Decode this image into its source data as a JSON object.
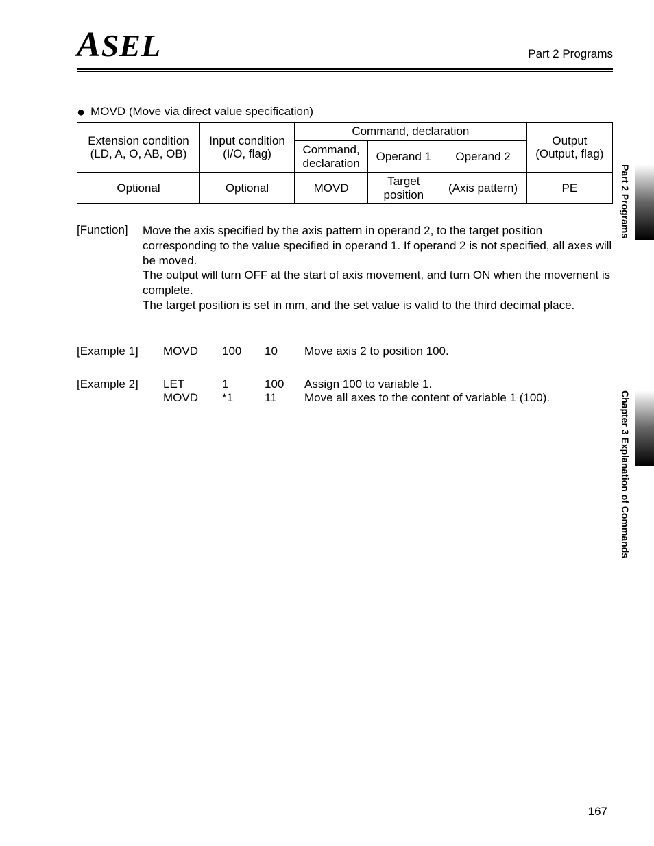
{
  "header": {
    "logo_text_a": "A",
    "logo_text_rest": "SEL",
    "right": "Part 2  Programs"
  },
  "title": {
    "bullet": "●",
    "text": "MOVD (Move via direct value specification)"
  },
  "table": {
    "h_ext1": "Extension condition",
    "h_ext2": "(LD, A, O, AB, OB)",
    "h_in1": "Input condition",
    "h_in2": "(I/O, flag)",
    "h_cmd_span": "Command, declaration",
    "h_cmd1": "Command,",
    "h_cmd2": "declaration",
    "h_op1": "Operand 1",
    "h_op2": "Operand 2",
    "h_out1": "Output",
    "h_out2": "(Output, flag)",
    "r_ext": "Optional",
    "r_in": "Optional",
    "r_cmd": "MOVD",
    "r_op1a": "Target",
    "r_op1b": "position",
    "r_op2": "(Axis pattern)",
    "r_out": "PE"
  },
  "function": {
    "label": "[Function]",
    "text": "Move the axis specified by the axis pattern in operand 2, to the target position corresponding to the value specified in operand 1. If operand 2 is not specified, all axes will be moved.\nThe output will turn OFF at the start of axis movement, and turn ON when the movement is complete.\nThe target position is set in mm, and the set value is valid to the third decimal place."
  },
  "examples": [
    {
      "label": "[Example 1]",
      "lines": [
        {
          "code": "MOVD",
          "op1": "100",
          "op2": "10",
          "desc": "Move axis 2 to position 100."
        }
      ]
    },
    {
      "label": "[Example 2]",
      "lines": [
        {
          "code": "LET",
          "op1": "1",
          "op2": "100",
          "desc": "Assign 100 to variable 1."
        },
        {
          "code": "MOVD",
          "op1": "*1",
          "op2": "11",
          "desc": "Move all axes to the content of variable 1 (100)."
        }
      ]
    }
  ],
  "tabs": {
    "t1": "Part 2  Programs",
    "t2": "Chapter 3  Explanation of Commands"
  },
  "page_number": "167"
}
